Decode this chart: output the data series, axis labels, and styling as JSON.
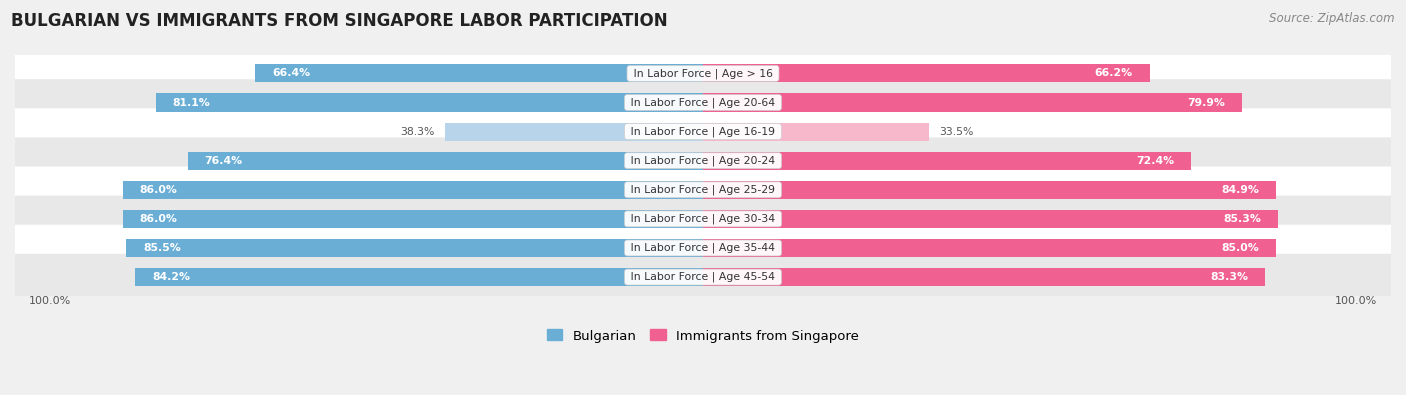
{
  "title": "BULGARIAN VS IMMIGRANTS FROM SINGAPORE LABOR PARTICIPATION",
  "source": "Source: ZipAtlas.com",
  "categories": [
    "In Labor Force | Age > 16",
    "In Labor Force | Age 20-64",
    "In Labor Force | Age 16-19",
    "In Labor Force | Age 20-24",
    "In Labor Force | Age 25-29",
    "In Labor Force | Age 30-34",
    "In Labor Force | Age 35-44",
    "In Labor Force | Age 45-54"
  ],
  "bulgarian": [
    66.4,
    81.1,
    38.3,
    76.4,
    86.0,
    86.0,
    85.5,
    84.2
  ],
  "singapore": [
    66.2,
    79.9,
    33.5,
    72.4,
    84.9,
    85.3,
    85.0,
    83.3
  ],
  "bulgarian_color": "#6aaed6",
  "bulgarian_color_light": "#b8d4ea",
  "singapore_color": "#f06090",
  "singapore_color_light": "#f8b8cc",
  "bg_color": "#f0f0f0",
  "row_colors": [
    "#ffffff",
    "#e8e8e8"
  ],
  "max_val": 100.0,
  "bar_height": 0.62,
  "legend_bulgarian": "Bulgarian",
  "legend_singapore": "Immigrants from Singapore",
  "title_fontsize": 12,
  "source_fontsize": 8.5,
  "label_fontsize": 7.8,
  "value_fontsize": 7.8,
  "axis_fontsize": 8
}
